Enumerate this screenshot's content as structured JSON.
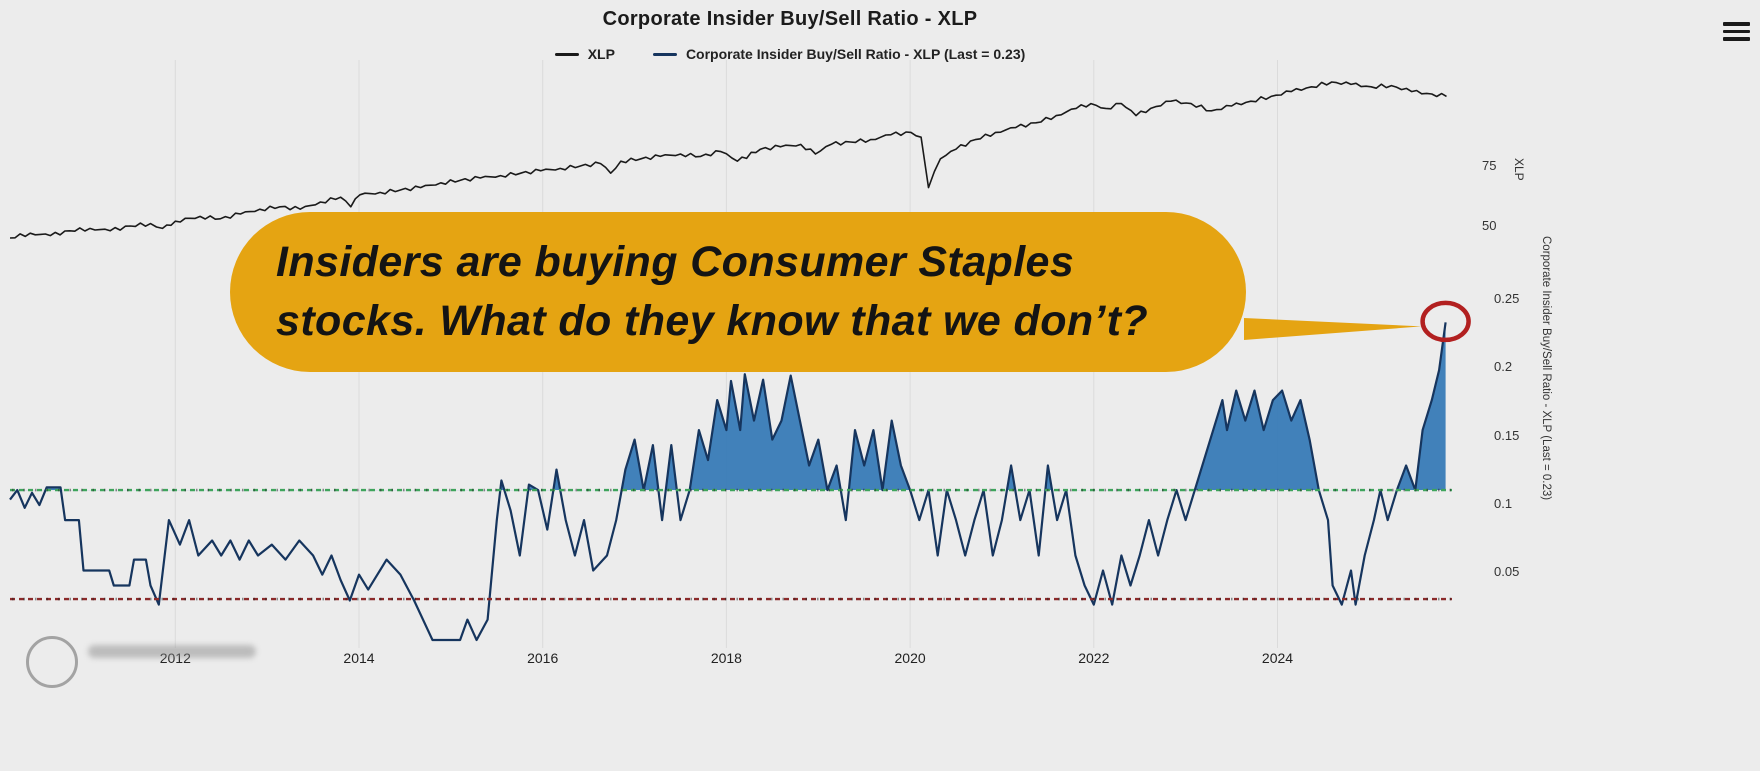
{
  "page": {
    "background": "#ececec"
  },
  "header": {
    "title": "Corporate Insider Buy/Sell Ratio - XLP"
  },
  "legend": [
    {
      "label": "XLP",
      "color": "#1a1a1a"
    },
    {
      "label": "Corporate Insider Buy/Sell Ratio - XLP (Last = 0.23)",
      "color": "#16355e"
    }
  ],
  "annotation": {
    "line1": "Insiders are buying Consumer Staples",
    "line2": "stocks.  What do they know that we don’t?",
    "bubble_color": "#e5a412",
    "text_color": "#141414",
    "circle_color": "#b22020"
  },
  "chart_data": {
    "type": "line",
    "title": "Corporate Insider Buy/Sell Ratio - XLP",
    "xlim": [
      2010.2,
      2025.9
    ],
    "x_ticks": [
      "2012",
      "2014",
      "2016",
      "2018",
      "2020",
      "2022",
      "2024"
    ],
    "x_tick_years": [
      2012,
      2014,
      2016,
      2018,
      2020,
      2022,
      2024
    ],
    "grid": "vertical-light",
    "legend_position": "top-center",
    "price_axis": {
      "label": "XLP",
      "ticks": [
        75,
        50
      ],
      "lim": [
        40,
        115
      ]
    },
    "ratio_axis": {
      "label": "Corporate Insider Buy/Sell Ratio - XLP (Last = 0.23)",
      "ticks": [
        0.25,
        0.2,
        0.15,
        0.1,
        0.05
      ],
      "lim": [
        0,
        0.27
      ]
    },
    "reference_lines": [
      {
        "axis": "ratio",
        "value": 0.11,
        "color": "#3fa45c",
        "style": "dotted"
      },
      {
        "axis": "ratio",
        "value": 0.03,
        "color": "#8b2a2a",
        "style": "dotted"
      }
    ],
    "highlight": {
      "x": 2025.83,
      "y": 0.233,
      "marker": "red-circle"
    },
    "series": [
      {
        "name": "XLP",
        "axis": "price",
        "color": "#1a1a1a",
        "points": [
          [
            2010.2,
            45
          ],
          [
            2010.42,
            47
          ],
          [
            2010.64,
            46
          ],
          [
            2010.85,
            48
          ],
          [
            2011.07,
            49
          ],
          [
            2011.29,
            48
          ],
          [
            2011.51,
            50
          ],
          [
            2011.73,
            51
          ],
          [
            2011.86,
            49
          ],
          [
            2012.0,
            52
          ],
          [
            2012.27,
            54
          ],
          [
            2012.49,
            53
          ],
          [
            2012.71,
            55
          ],
          [
            2012.92,
            57
          ],
          [
            2013.14,
            58
          ],
          [
            2013.36,
            57
          ],
          [
            2013.58,
            60
          ],
          [
            2013.8,
            62
          ],
          [
            2013.91,
            58
          ],
          [
            2014.01,
            63
          ],
          [
            2014.23,
            64
          ],
          [
            2014.45,
            65
          ],
          [
            2014.67,
            66
          ],
          [
            2014.89,
            68
          ],
          [
            2015.1,
            69
          ],
          [
            2015.32,
            70
          ],
          [
            2015.54,
            71
          ],
          [
            2015.76,
            72
          ],
          [
            2015.98,
            73
          ],
          [
            2016.19,
            74
          ],
          [
            2016.41,
            75
          ],
          [
            2016.63,
            76
          ],
          [
            2016.74,
            72
          ],
          [
            2016.85,
            77
          ],
          [
            2017.07,
            78
          ],
          [
            2017.28,
            79
          ],
          [
            2017.5,
            80
          ],
          [
            2017.72,
            79
          ],
          [
            2017.94,
            81
          ],
          [
            2018.12,
            77
          ],
          [
            2018.37,
            82
          ],
          [
            2018.59,
            83
          ],
          [
            2018.81,
            84
          ],
          [
            2018.97,
            80
          ],
          [
            2019.14,
            84
          ],
          [
            2019.35,
            85
          ],
          [
            2019.57,
            86
          ],
          [
            2019.79,
            88
          ],
          [
            2020.01,
            89
          ],
          [
            2020.12,
            87
          ],
          [
            2020.2,
            66
          ],
          [
            2020.33,
            78
          ],
          [
            2020.5,
            82
          ],
          [
            2020.71,
            86
          ],
          [
            2020.93,
            89
          ],
          [
            2021.15,
            91
          ],
          [
            2021.37,
            93
          ],
          [
            2021.59,
            96
          ],
          [
            2021.81,
            99
          ],
          [
            2021.97,
            101
          ],
          [
            2022.13,
            99
          ],
          [
            2022.3,
            101
          ],
          [
            2022.46,
            96
          ],
          [
            2022.62,
            99
          ],
          [
            2022.84,
            102
          ],
          [
            2023.06,
            101
          ],
          [
            2023.28,
            98
          ],
          [
            2023.5,
            100
          ],
          [
            2023.71,
            102
          ],
          [
            2023.93,
            104
          ],
          [
            2024.15,
            106
          ],
          [
            2024.37,
            108
          ],
          [
            2024.59,
            110
          ],
          [
            2024.8,
            109
          ],
          [
            2025.02,
            108
          ],
          [
            2025.24,
            108.5
          ],
          [
            2025.46,
            106
          ],
          [
            2025.68,
            105
          ],
          [
            2025.84,
            104
          ]
        ]
      },
      {
        "name": "Corporate Insider Buy/Sell Ratio - XLP",
        "axis": "ratio",
        "color": "#16355e",
        "fill_above": 0.11,
        "fill_color": "#2f76b5",
        "points": [
          [
            2010.2,
            0.103
          ],
          [
            2010.28,
            0.11
          ],
          [
            2010.36,
            0.097
          ],
          [
            2010.44,
            0.108
          ],
          [
            2010.52,
            0.099
          ],
          [
            2010.6,
            0.112
          ],
          [
            2010.75,
            0.112
          ],
          [
            2010.8,
            0.088
          ],
          [
            2010.95,
            0.088
          ],
          [
            2011.0,
            0.051
          ],
          [
            2011.28,
            0.051
          ],
          [
            2011.33,
            0.04
          ],
          [
            2011.5,
            0.04
          ],
          [
            2011.55,
            0.059
          ],
          [
            2011.68,
            0.059
          ],
          [
            2011.73,
            0.04
          ],
          [
            2011.82,
            0.026
          ],
          [
            2011.93,
            0.088
          ],
          [
            2012.05,
            0.07
          ],
          [
            2012.15,
            0.088
          ],
          [
            2012.25,
            0.062
          ],
          [
            2012.4,
            0.073
          ],
          [
            2012.5,
            0.062
          ],
          [
            2012.6,
            0.073
          ],
          [
            2012.7,
            0.059
          ],
          [
            2012.8,
            0.073
          ],
          [
            2012.9,
            0.062
          ],
          [
            2013.05,
            0.07
          ],
          [
            2013.2,
            0.059
          ],
          [
            2013.35,
            0.073
          ],
          [
            2013.5,
            0.062
          ],
          [
            2013.6,
            0.048
          ],
          [
            2013.7,
            0.062
          ],
          [
            2013.8,
            0.044
          ],
          [
            2013.9,
            0.029
          ],
          [
            2014.0,
            0.048
          ],
          [
            2014.1,
            0.037
          ],
          [
            2014.2,
            0.048
          ],
          [
            2014.3,
            0.059
          ],
          [
            2014.45,
            0.048
          ],
          [
            2014.6,
            0.029
          ],
          [
            2014.8,
            0.0
          ],
          [
            2015.1,
            0.0
          ],
          [
            2015.18,
            0.015
          ],
          [
            2015.28,
            0.0
          ],
          [
            2015.4,
            0.015
          ],
          [
            2015.5,
            0.088
          ],
          [
            2015.55,
            0.117
          ],
          [
            2015.65,
            0.095
          ],
          [
            2015.75,
            0.062
          ],
          [
            2015.85,
            0.114
          ],
          [
            2015.95,
            0.11
          ],
          [
            2016.05,
            0.081
          ],
          [
            2016.15,
            0.125
          ],
          [
            2016.25,
            0.088
          ],
          [
            2016.35,
            0.062
          ],
          [
            2016.45,
            0.088
          ],
          [
            2016.55,
            0.051
          ],
          [
            2016.7,
            0.062
          ],
          [
            2016.8,
            0.088
          ],
          [
            2016.9,
            0.125
          ],
          [
            2017.0,
            0.147
          ],
          [
            2017.1,
            0.11
          ],
          [
            2017.2,
            0.143
          ],
          [
            2017.3,
            0.088
          ],
          [
            2017.4,
            0.143
          ],
          [
            2017.5,
            0.088
          ],
          [
            2017.6,
            0.11
          ],
          [
            2017.7,
            0.154
          ],
          [
            2017.8,
            0.132
          ],
          [
            2017.9,
            0.176
          ],
          [
            2018.0,
            0.154
          ],
          [
            2018.05,
            0.19
          ],
          [
            2018.15,
            0.154
          ],
          [
            2018.2,
            0.195
          ],
          [
            2018.3,
            0.161
          ],
          [
            2018.4,
            0.191
          ],
          [
            2018.5,
            0.147
          ],
          [
            2018.6,
            0.161
          ],
          [
            2018.7,
            0.194
          ],
          [
            2018.8,
            0.161
          ],
          [
            2018.9,
            0.128
          ],
          [
            2019.0,
            0.147
          ],
          [
            2019.1,
            0.11
          ],
          [
            2019.2,
            0.128
          ],
          [
            2019.3,
            0.088
          ],
          [
            2019.4,
            0.154
          ],
          [
            2019.5,
            0.128
          ],
          [
            2019.6,
            0.154
          ],
          [
            2019.7,
            0.11
          ],
          [
            2019.8,
            0.161
          ],
          [
            2019.9,
            0.128
          ],
          [
            2020.0,
            0.11
          ],
          [
            2020.1,
            0.088
          ],
          [
            2020.2,
            0.11
          ],
          [
            2020.3,
            0.062
          ],
          [
            2020.4,
            0.11
          ],
          [
            2020.5,
            0.088
          ],
          [
            2020.6,
            0.062
          ],
          [
            2020.7,
            0.088
          ],
          [
            2020.8,
            0.11
          ],
          [
            2020.9,
            0.062
          ],
          [
            2021.0,
            0.088
          ],
          [
            2021.1,
            0.128
          ],
          [
            2021.2,
            0.088
          ],
          [
            2021.3,
            0.11
          ],
          [
            2021.4,
            0.062
          ],
          [
            2021.5,
            0.128
          ],
          [
            2021.6,
            0.088
          ],
          [
            2021.7,
            0.11
          ],
          [
            2021.8,
            0.062
          ],
          [
            2021.9,
            0.04
          ],
          [
            2022.0,
            0.026
          ],
          [
            2022.1,
            0.051
          ],
          [
            2022.2,
            0.026
          ],
          [
            2022.3,
            0.062
          ],
          [
            2022.4,
            0.04
          ],
          [
            2022.5,
            0.062
          ],
          [
            2022.6,
            0.088
          ],
          [
            2022.7,
            0.062
          ],
          [
            2022.8,
            0.088
          ],
          [
            2022.9,
            0.11
          ],
          [
            2023.0,
            0.088
          ],
          [
            2023.1,
            0.11
          ],
          [
            2023.2,
            0.132
          ],
          [
            2023.3,
            0.154
          ],
          [
            2023.4,
            0.176
          ],
          [
            2023.45,
            0.154
          ],
          [
            2023.55,
            0.183
          ],
          [
            2023.65,
            0.161
          ],
          [
            2023.75,
            0.183
          ],
          [
            2023.85,
            0.154
          ],
          [
            2023.95,
            0.176
          ],
          [
            2024.05,
            0.183
          ],
          [
            2024.15,
            0.161
          ],
          [
            2024.25,
            0.176
          ],
          [
            2024.35,
            0.147
          ],
          [
            2024.45,
            0.11
          ],
          [
            2024.55,
            0.088
          ],
          [
            2024.6,
            0.04
          ],
          [
            2024.7,
            0.026
          ],
          [
            2024.8,
            0.051
          ],
          [
            2024.85,
            0.026
          ],
          [
            2024.95,
            0.062
          ],
          [
            2025.05,
            0.088
          ],
          [
            2025.12,
            0.11
          ],
          [
            2025.2,
            0.088
          ],
          [
            2025.3,
            0.11
          ],
          [
            2025.4,
            0.128
          ],
          [
            2025.5,
            0.11
          ],
          [
            2025.58,
            0.154
          ],
          [
            2025.68,
            0.176
          ],
          [
            2025.76,
            0.198
          ],
          [
            2025.83,
            0.233
          ]
        ]
      }
    ]
  }
}
